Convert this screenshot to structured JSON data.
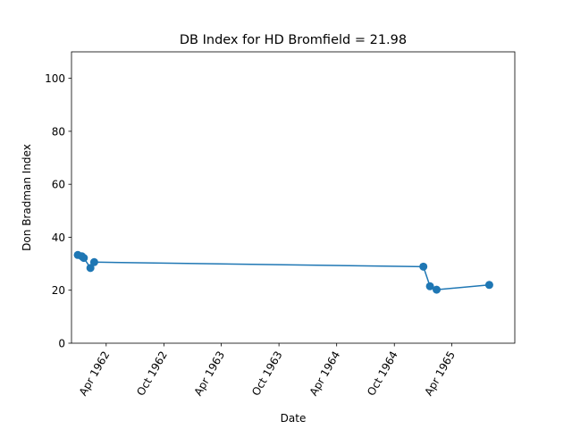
{
  "chart_data": {
    "type": "line",
    "title": "DB Index for HD Bromfield = 21.98",
    "xlabel": "Date",
    "ylabel": "Don Bradman Index",
    "ylim": [
      0,
      110
    ],
    "xlim": [
      "1961-12-12",
      "1965-10-18"
    ],
    "y_ticks": [
      0,
      20,
      40,
      60,
      80,
      100
    ],
    "x_ticks": [
      {
        "date": "1962-04-01",
        "label": "Apr 1962"
      },
      {
        "date": "1962-10-01",
        "label": "Oct 1962"
      },
      {
        "date": "1963-04-01",
        "label": "Apr 1963"
      },
      {
        "date": "1963-10-01",
        "label": "Oct 1963"
      },
      {
        "date": "1964-04-01",
        "label": "Apr 1964"
      },
      {
        "date": "1964-10-01",
        "label": "Oct 1964"
      },
      {
        "date": "1965-04-01",
        "label": "Apr 1965"
      }
    ],
    "grid": false,
    "series": [
      {
        "color": "#1f77b4",
        "x": [
          "1962-01-01",
          "1962-01-14",
          "1962-01-20",
          "1962-02-10",
          "1962-02-22",
          "1965-01-01",
          "1965-01-22",
          "1965-02-12",
          "1965-07-29"
        ],
        "y": [
          33.3,
          32.8,
          32.2,
          28.4,
          30.6,
          28.9,
          21.5,
          20.2,
          22.0
        ]
      }
    ]
  }
}
